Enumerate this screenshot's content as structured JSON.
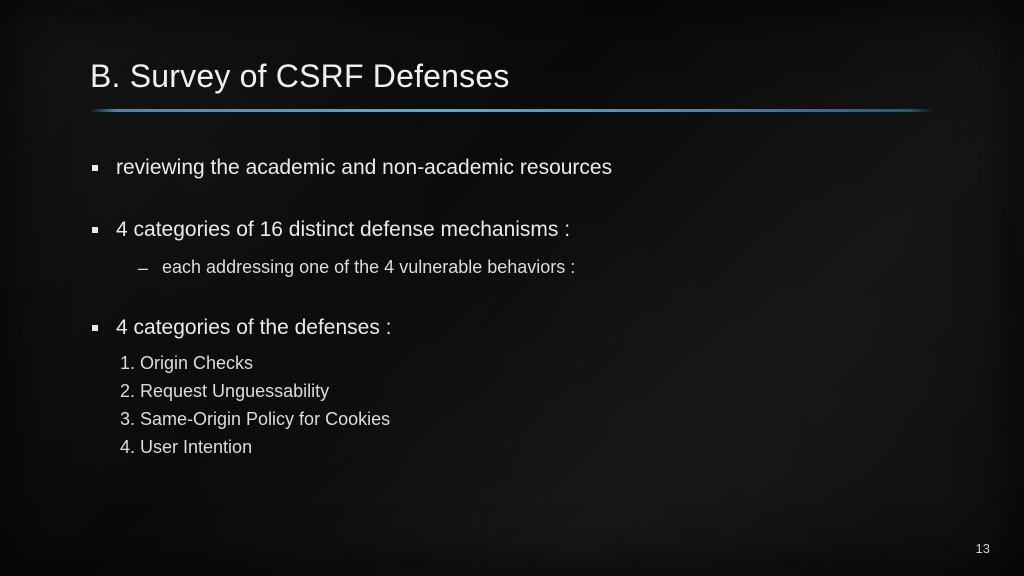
{
  "slide": {
    "title": "B. Survey of CSRF Defenses",
    "rule_color": "#36a3d9",
    "background_color": "#0e0e0e",
    "text_color": "#e8e8e8",
    "title_fontsize": 32,
    "body_fontsize": 21,
    "sub_fontsize": 18,
    "bullets": [
      {
        "text": "reviewing the academic and non-academic resources",
        "subs": [],
        "numbered": []
      },
      {
        "text": "4 categories of 16 distinct defense mechanisms :",
        "subs": [
          "each addressing one of the 4 vulnerable behaviors :"
        ],
        "numbered": []
      },
      {
        "text": "4 categories of the defenses :",
        "subs": [],
        "numbered": [
          "1. Origin Checks",
          "2. Request Unguessability",
          "3. Same-Origin Policy for Cookies",
          "4. User Intention"
        ]
      }
    ],
    "page_number": "13"
  }
}
